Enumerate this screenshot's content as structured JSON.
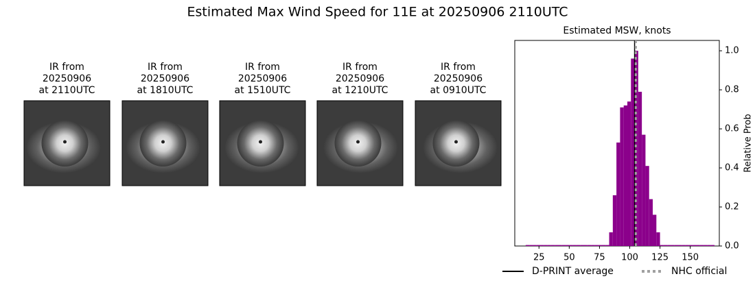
{
  "title": "Estimated Max Wind Speed for 11E at 20250906 2110UTC",
  "panels": [
    {
      "lines": [
        "IR from",
        "20250906",
        "at 2110UTC"
      ]
    },
    {
      "lines": [
        "IR from",
        "20250906",
        "at 1810UTC"
      ]
    },
    {
      "lines": [
        "IR from",
        "20250906",
        "at 1510UTC"
      ]
    },
    {
      "lines": [
        "IR from",
        "20250906",
        "at 1210UTC"
      ]
    },
    {
      "lines": [
        "IR from",
        "20250906",
        "at 0910UTC"
      ]
    }
  ],
  "chart_data": {
    "type": "histogram",
    "title": "Estimated MSW, knots",
    "ylabel": "Relative Prob",
    "color": "#8b008b",
    "bins": [
      14,
      17,
      20,
      23,
      26,
      29,
      32,
      35,
      38,
      41,
      44,
      47,
      50,
      53,
      56,
      59,
      62,
      65,
      68,
      71,
      74,
      77,
      80,
      83,
      86,
      89,
      92,
      95,
      98,
      101,
      104,
      107,
      110,
      113,
      116,
      119,
      122,
      125,
      128,
      131,
      134,
      137,
      140,
      143,
      146,
      149,
      152,
      155,
      158,
      161,
      164,
      167,
      170
    ],
    "values": [
      0.005,
      0.005,
      0.005,
      0.005,
      0.005,
      0.005,
      0.005,
      0.005,
      0.005,
      0.005,
      0.005,
      0.005,
      0.005,
      0.005,
      0.005,
      0.005,
      0.005,
      0.005,
      0.005,
      0.005,
      0.005,
      0.005,
      0.005,
      0.07,
      0.26,
      0.53,
      0.71,
      0.72,
      0.74,
      0.96,
      1.0,
      0.79,
      0.57,
      0.41,
      0.24,
      0.16,
      0.07,
      0.005,
      0.005,
      0.005,
      0.005,
      0.005,
      0.005,
      0.005,
      0.005,
      0.005,
      0.005,
      0.005,
      0.005,
      0.005,
      0.005,
      0.005
    ],
    "xlim": [
      5,
      174
    ],
    "xticks": [
      25,
      50,
      75,
      100,
      125,
      150
    ],
    "ylim": [
      0,
      1.053
    ],
    "yticks": [
      {
        "value": 0,
        "label": "0.0"
      },
      0.2,
      0.4,
      0.6,
      0.8,
      {
        "value": 1,
        "label": "1.0"
      }
    ],
    "lines": [
      {
        "name": "D-PRINT average",
        "value": 104,
        "color": "#000000",
        "style": "solid"
      },
      {
        "name": "NHC official",
        "value": 105,
        "color": "#a0a0a0",
        "style": "dotted"
      }
    ]
  }
}
